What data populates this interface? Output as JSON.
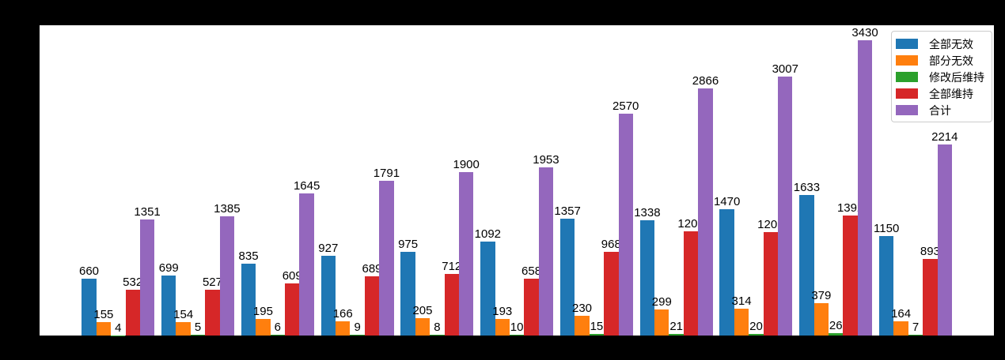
{
  "figure": {
    "background": "#000000",
    "plot_background": "#ffffff",
    "text_color": "#000000"
  },
  "legend": {
    "position": "upper-right",
    "background": "#ffffff",
    "border_color": "#cccccc"
  },
  "chart_data": {
    "type": "bar",
    "group_count": 11,
    "series": [
      {
        "name": "全部无效",
        "color": "#1f77b4",
        "values": [
          660,
          699,
          835,
          927,
          975,
          1092,
          1357,
          1338,
          1470,
          1633,
          1150
        ]
      },
      {
        "name": "部分无效",
        "color": "#ff7f0e",
        "values": [
          155,
          154,
          195,
          166,
          205,
          193,
          230,
          299,
          314,
          379,
          164
        ]
      },
      {
        "name": "修改后维持",
        "color": "#2ca02c",
        "values": [
          4,
          5,
          6,
          9,
          8,
          10,
          15,
          21,
          20,
          26,
          7
        ]
      },
      {
        "name": "全部维持",
        "color": "#d62728",
        "values": [
          532,
          527,
          609,
          689,
          712,
          658,
          968,
          1208,
          1203,
          1392,
          893
        ]
      },
      {
        "name": "合计",
        "color": "#9467bd",
        "values": [
          1351,
          1385,
          1645,
          1791,
          1900,
          1953,
          2570,
          2866,
          3007,
          3430,
          2214
        ]
      }
    ],
    "ylim": [
      0,
      3600
    ],
    "bar_value_labels": true,
    "grid": false,
    "legend_position": "upper right",
    "x_tick_labels_visible": false,
    "y_tick_labels_visible": false,
    "title": ""
  }
}
